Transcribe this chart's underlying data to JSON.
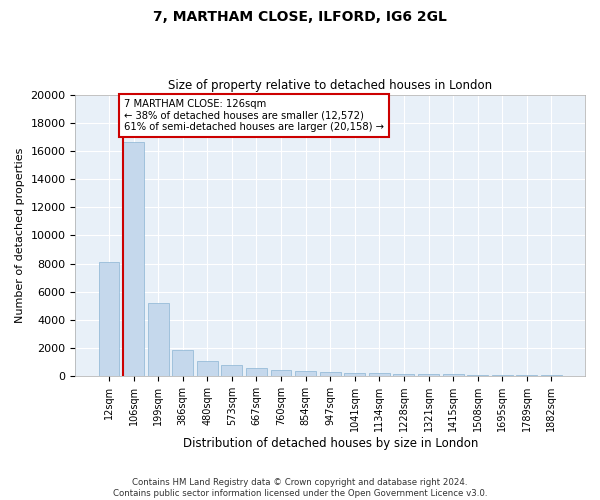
{
  "title": "7, MARTHAM CLOSE, ILFORD, IG6 2GL",
  "subtitle": "Size of property relative to detached houses in London",
  "xlabel": "Distribution of detached houses by size in London",
  "ylabel": "Number of detached properties",
  "bar_color": "#c5d8ec",
  "bar_edge_color": "#8ab4d4",
  "vline_color": "#cc0000",
  "annotation_line1": "7 MARTHAM CLOSE: 126sqm",
  "annotation_line2": "← 38% of detached houses are smaller (12,572)",
  "annotation_line3": "61% of semi-detached houses are larger (20,158) →",
  "annotation_box_color": "#ffffff",
  "annotation_box_edge": "#cc0000",
  "categories": [
    "12sqm",
    "106sqm",
    "199sqm",
    "386sqm",
    "480sqm",
    "573sqm",
    "667sqm",
    "760sqm",
    "854sqm",
    "947sqm",
    "1041sqm",
    "1134sqm",
    "1228sqm",
    "1321sqm",
    "1415sqm",
    "1508sqm",
    "1695sqm",
    "1789sqm",
    "1882sqm"
  ],
  "values": [
    8100,
    16600,
    5200,
    1850,
    1100,
    780,
    570,
    430,
    360,
    295,
    250,
    210,
    185,
    165,
    140,
    115,
    90,
    75,
    60
  ],
  "ylim": [
    0,
    20000
  ],
  "yticks": [
    0,
    2000,
    4000,
    6000,
    8000,
    10000,
    12000,
    14000,
    16000,
    18000,
    20000
  ],
  "background_color": "#e8f0f8",
  "footer_line1": "Contains HM Land Registry data © Crown copyright and database right 2024.",
  "footer_line2": "Contains public sector information licensed under the Open Government Licence v3.0."
}
